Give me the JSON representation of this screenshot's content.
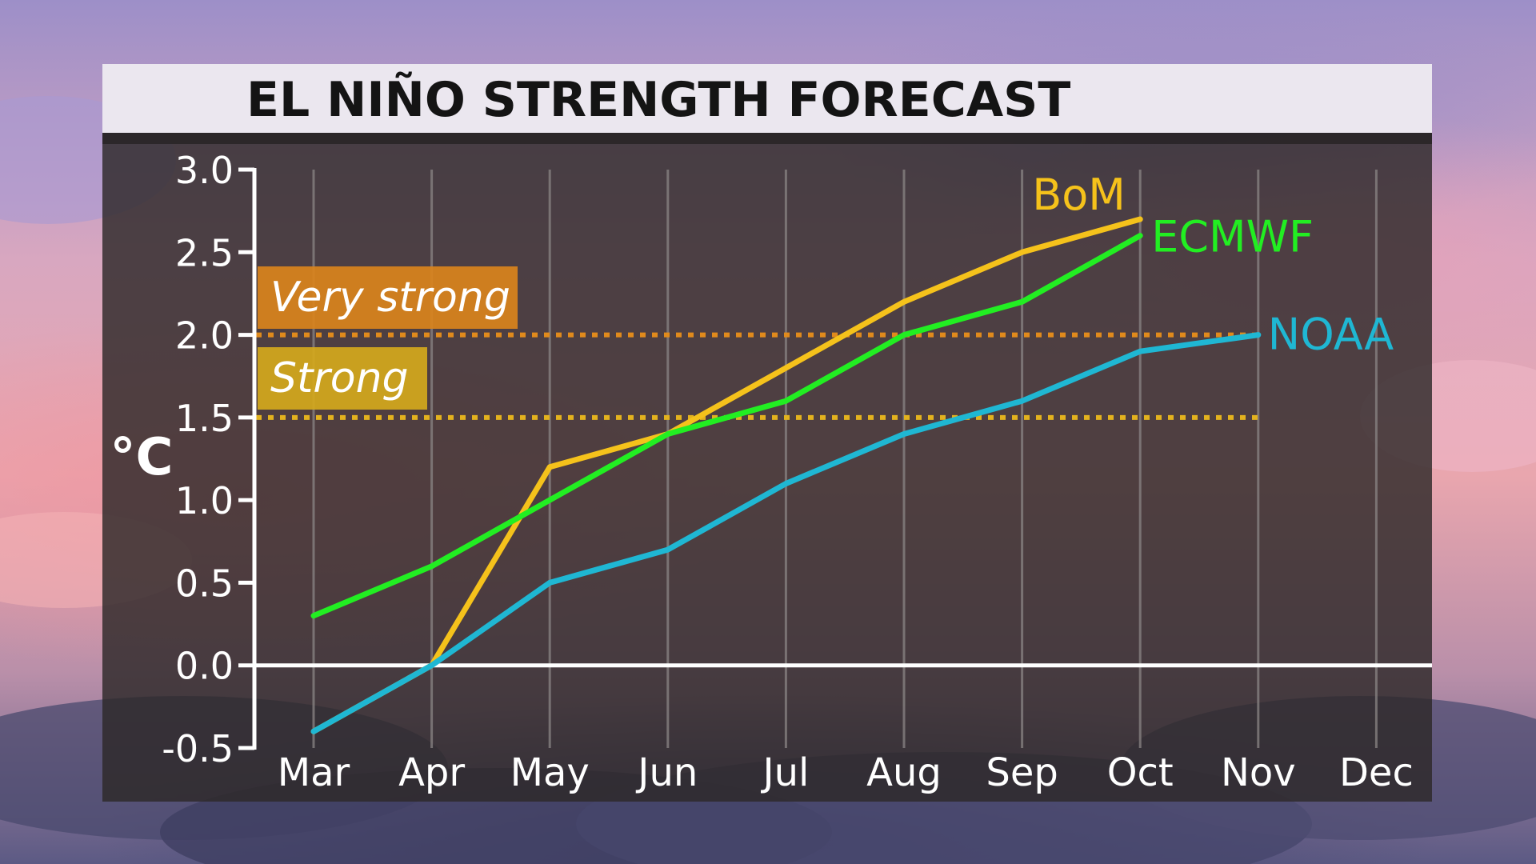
{
  "title": "EL NIÑO STRENGTH FORECAST",
  "chart_data": {
    "type": "line",
    "title": "EL NIÑO STRENGTH FORECAST",
    "xlabel": "",
    "ylabel": "°C",
    "categories": [
      "Mar",
      "Apr",
      "May",
      "Jun",
      "Jul",
      "Aug",
      "Sep",
      "Oct",
      "Nov",
      "Dec"
    ],
    "ylim": [
      -0.5,
      3.0
    ],
    "yticks": [
      "3.0",
      "2.5",
      "2.0",
      "1.5",
      "1.0",
      "0.5",
      "0.0",
      "-0.5"
    ],
    "ytick_values": [
      3.0,
      2.5,
      2.0,
      1.5,
      1.0,
      0.5,
      0.0,
      -0.5
    ],
    "grid": "vertical",
    "legend": "inline labels at line ends",
    "series": [
      {
        "name": "BoM",
        "color": "#f5c21b",
        "values": [
          -0.4,
          0.0,
          1.2,
          1.4,
          1.8,
          2.2,
          2.5,
          2.7,
          null,
          null
        ]
      },
      {
        "name": "ECMWF",
        "color": "#22ee22",
        "values": [
          0.3,
          0.6,
          1.0,
          1.4,
          1.6,
          2.0,
          2.2,
          2.6,
          null,
          null
        ]
      },
      {
        "name": "NOAA",
        "color": "#1fb7d3",
        "values": [
          -0.4,
          0.0,
          0.5,
          0.7,
          1.1,
          1.4,
          1.6,
          1.9,
          2.0,
          null
        ]
      }
    ],
    "thresholds": [
      {
        "label": "Very strong",
        "value": 2.0,
        "color": "#e08a1c",
        "label_bg": "#d9831c"
      },
      {
        "label": "Strong",
        "value": 1.5,
        "color": "#e3b21e",
        "label_bg": "#d4a81c"
      }
    ]
  }
}
